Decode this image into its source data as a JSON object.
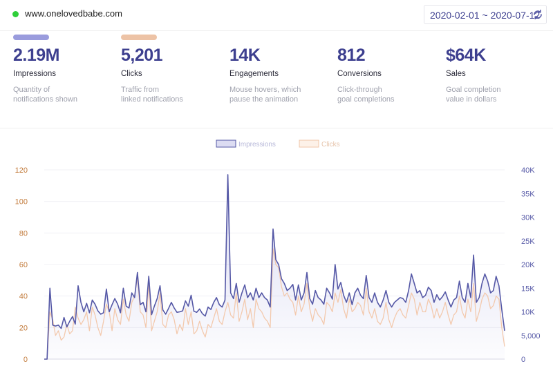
{
  "header": {
    "site": "www.onelovedbabe.com",
    "date_range": "2020-02-01 ~ 2020-07-12",
    "status_color": "#2fcf3a"
  },
  "colors": {
    "impressions": "#5558a6",
    "impressions_bar": "#9a9cdd",
    "clicks": "#f3c9ad",
    "clicks_bar": "#edc3a6",
    "kpi_value": "#3d3f8f",
    "left_axis": "#c27a3a",
    "right_axis": "#5558a6"
  },
  "kpis": [
    {
      "value": "2.19M",
      "label": "Impressions",
      "desc": "Quantity of\nnotifications shown",
      "bar_color": "#9a9cdd"
    },
    {
      "value": "5,201",
      "label": "Clicks",
      "desc": "Traffic from\nlinked notifications",
      "bar_color": "#edc3a6"
    },
    {
      "value": "14K",
      "label": "Engagements",
      "desc": "Mouse hovers, which\npause the animation"
    },
    {
      "value": "812",
      "label": "Conversions",
      "desc": "Click-through\ngoal completions"
    },
    {
      "value": "$64K",
      "label": "Sales",
      "desc": "Goal completion\nvalue in dollars"
    }
  ],
  "chart_data": {
    "type": "line",
    "legend": [
      "Impressions",
      "Clicks"
    ],
    "legend_position": "top-center",
    "grid": true,
    "left_axis": {
      "ticks": [
        "0",
        "20",
        "40",
        "60",
        "80",
        "100",
        "120"
      ],
      "range": [
        0,
        120
      ],
      "series": "Clicks"
    },
    "right_axis": {
      "ticks": [
        "0",
        "5,000",
        "10K",
        "15K",
        "20K",
        "25K",
        "30K",
        "35K",
        "40K"
      ],
      "range": [
        0,
        40000
      ],
      "series": "Impressions"
    },
    "series": [
      {
        "name": "Impressions",
        "axis": "right",
        "values": [
          0,
          0,
          15000,
          7200,
          7000,
          7200,
          6500,
          8800,
          6800,
          8000,
          9000,
          7400,
          15500,
          12000,
          10000,
          11800,
          9800,
          12500,
          11600,
          10200,
          9500,
          9800,
          14800,
          10000,
          11500,
          12800,
          11600,
          9800,
          15000,
          11200,
          10800,
          14000,
          13000,
          18300,
          11500,
          12000,
          10000,
          17500,
          9400,
          11200,
          12800,
          15500,
          10400,
          9500,
          10700,
          12000,
          10800,
          9900,
          10000,
          10200,
          12300,
          11200,
          13500,
          10100,
          9900,
          10600,
          9600,
          9100,
          11000,
          10500,
          12000,
          13000,
          11500,
          11000,
          12500,
          39000,
          14000,
          12800,
          16000,
          12000,
          14000,
          15700,
          13000,
          14000,
          12500,
          15000,
          13000,
          14000,
          13000,
          12500,
          11000,
          27500,
          21000,
          20000,
          17000,
          16000,
          14500,
          15000,
          15800,
          12500,
          15700,
          12500,
          14000,
          18300,
          12800,
          11600,
          14500,
          13000,
          12500,
          11600,
          15000,
          14000,
          12700,
          20000,
          14800,
          16200,
          13500,
          12000,
          14000,
          11500,
          14000,
          15000,
          13500,
          12800,
          17700,
          13000,
          12000,
          14000,
          12000,
          11000,
          12500,
          14500,
          12000,
          11000,
          12000,
          12500,
          13000,
          12800,
          12000,
          14500,
          18000,
          16000,
          14000,
          14500,
          13000,
          13500,
          15200,
          14500,
          12000,
          13600,
          12500,
          13200,
          14200,
          12500,
          11000,
          12500,
          13000,
          16500,
          13000,
          12000,
          16000,
          13000,
          22000,
          12000,
          13000,
          16000,
          18000,
          16500,
          14000,
          14500,
          17500,
          15500,
          10500,
          6000
        ]
      },
      {
        "name": "Clicks",
        "axis": "left",
        "values": [
          0,
          0,
          30,
          25,
          15,
          18,
          12,
          14,
          22,
          16,
          18,
          33,
          26,
          22,
          25,
          30,
          18,
          33,
          28,
          20,
          15,
          24,
          35,
          30,
          18,
          32,
          25,
          22,
          38,
          28,
          24,
          36,
          40,
          52,
          30,
          28,
          20,
          48,
          18,
          24,
          30,
          42,
          22,
          20,
          28,
          30,
          25,
          16,
          22,
          18,
          32,
          22,
          30,
          16,
          18,
          24,
          18,
          14,
          22,
          20,
          26,
          32,
          24,
          22,
          30,
          36,
          28,
          26,
          42,
          24,
          30,
          38,
          25,
          32,
          20,
          38,
          32,
          30,
          26,
          24,
          20,
          70,
          60,
          58,
          46,
          40,
          42,
          38,
          36,
          28,
          40,
          30,
          35,
          48,
          32,
          24,
          32,
          28,
          26,
          22,
          36,
          34,
          30,
          42,
          36,
          44,
          32,
          26,
          38,
          30,
          32,
          36,
          34,
          28,
          45,
          30,
          26,
          32,
          24,
          22,
          26,
          36,
          25,
          20,
          26,
          30,
          32,
          28,
          26,
          34,
          42,
          38,
          28,
          36,
          30,
          30,
          38,
          34,
          26,
          32,
          26,
          30,
          36,
          28,
          22,
          28,
          30,
          40,
          30,
          26,
          38,
          30,
          48,
          24,
          30,
          38,
          42,
          40,
          32,
          34,
          40,
          38,
          20,
          8
        ]
      }
    ]
  }
}
